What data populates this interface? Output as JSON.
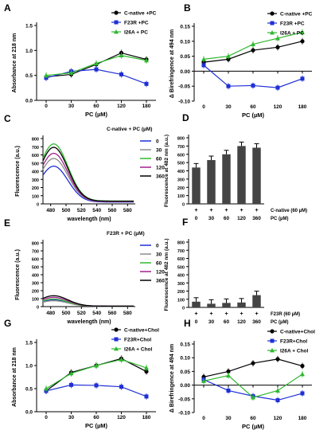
{
  "chart_data": [
    {
      "panel": "A",
      "type": "line",
      "xlabel": "PC (µM)",
      "ylabel": "Absorbance at 218 nm",
      "x": [
        0,
        30,
        60,
        120,
        180
      ],
      "xticks": [
        "0",
        "30",
        "60",
        "120",
        "180"
      ],
      "ylim": [
        0,
        1.5
      ],
      "yticks": [
        "0.0",
        "0.5",
        "1.0",
        "1.5"
      ],
      "legend": "top-right",
      "series": [
        {
          "name": "C-native +PC",
          "color": "#000000",
          "marker": "circle",
          "values": [
            0.47,
            0.52,
            0.72,
            0.95,
            0.82
          ]
        },
        {
          "name": "F23R +PC",
          "color": "#1f2fd6",
          "marker": "square",
          "values": [
            0.45,
            0.58,
            0.62,
            0.52,
            0.33
          ]
        },
        {
          "name": "I26A + PC",
          "color": "#2eb82e",
          "marker": "triangle",
          "values": [
            0.5,
            0.55,
            0.74,
            0.9,
            0.8
          ]
        }
      ]
    },
    {
      "panel": "B",
      "type": "line",
      "xlabel": "PC (µM)",
      "ylabel": "Δ Birefringence at 494 nm",
      "x": [
        0,
        30,
        60,
        120,
        180
      ],
      "xticks": [
        "0",
        "30",
        "60",
        "120",
        "180"
      ],
      "ylim": [
        -0.1,
        0.15
      ],
      "yticks": [
        "-0.10",
        "-0.05",
        "0.00",
        "0.05",
        "0.10",
        "0.15"
      ],
      "legend": "top-right",
      "series": [
        {
          "name": "C-native +PC",
          "color": "#000000",
          "marker": "circle",
          "values": [
            0.03,
            0.04,
            0.07,
            0.08,
            0.1
          ]
        },
        {
          "name": "F23R +PC",
          "color": "#1f2fd6",
          "marker": "square",
          "values": [
            0.02,
            -0.05,
            -0.048,
            -0.055,
            -0.025
          ]
        },
        {
          "name": "I26A + PC",
          "color": "#2eb82e",
          "marker": "triangle",
          "values": [
            0.04,
            0.05,
            0.09,
            0.11,
            0.13
          ]
        }
      ]
    },
    {
      "panel": "C",
      "type": "line",
      "xlabel": "wavelength (nm)",
      "ylabel": "Fluorescence (a.u.)",
      "xticks": [
        "480",
        "500",
        "520",
        "540",
        "560",
        "580"
      ],
      "ylim": [
        0,
        800
      ],
      "yticks": [
        "0",
        "100",
        "200",
        "300",
        "400",
        "500",
        "600",
        "700",
        "800"
      ],
      "legend_title": "C-native + PC (µM)",
      "legend": "top-right",
      "series": [
        {
          "name": "0",
          "color": "#1f2fd6",
          "peak": 440
        },
        {
          "name": "30",
          "color": "#8c8c8c",
          "peak": 530
        },
        {
          "name": "60",
          "color": "#2eb82e",
          "peak": 700
        },
        {
          "name": "120",
          "color": "#a0208c",
          "peak": 590
        },
        {
          "name": "360",
          "color": "#000000",
          "peak": 660
        }
      ]
    },
    {
      "panel": "D",
      "type": "bar",
      "ylabel": "Fluorescence at 482 nm (a.u.)",
      "categories": [
        "0",
        "30",
        "60",
        "120",
        "360"
      ],
      "values": [
        440,
        530,
        600,
        700,
        680
      ],
      "ylim": [
        0,
        800
      ],
      "yticks": [
        "0",
        "100",
        "200",
        "300",
        "400",
        "500",
        "600",
        "700",
        "800"
      ],
      "plus_row": [
        "+",
        "+",
        "+",
        "+",
        "+"
      ],
      "row_label_1": "C-native (60 µM)",
      "row_label_2": "PC (µM)"
    },
    {
      "panel": "E",
      "type": "line",
      "xlabel": "wavelength (nm)",
      "ylabel": "Fluorescence (a.u.)",
      "xticks": [
        "480",
        "500",
        "520",
        "540",
        "560",
        "580"
      ],
      "ylim": [
        0,
        800
      ],
      "yticks": [
        "0",
        "100",
        "200",
        "300",
        "400",
        "500",
        "600",
        "700",
        "800"
      ],
      "legend_title": "F23R + PC (µM)",
      "legend": "top-right",
      "series": [
        {
          "name": "0",
          "color": "#1f2fd6",
          "peak": 80
        },
        {
          "name": "30",
          "color": "#8c8c8c",
          "peak": 70
        },
        {
          "name": "60",
          "color": "#2eb82e",
          "peak": 90
        },
        {
          "name": "120",
          "color": "#a0208c",
          "peak": 110
        },
        {
          "name": "360",
          "color": "#000000",
          "peak": 130
        }
      ]
    },
    {
      "panel": "F",
      "type": "bar",
      "ylabel": "Fluorescence at 482 nm (a.u.)",
      "categories": [
        "0",
        "30",
        "60",
        "120",
        "360"
      ],
      "values": [
        70,
        45,
        55,
        60,
        150
      ],
      "ylim": [
        0,
        800
      ],
      "yticks": [
        "0",
        "100",
        "200",
        "300",
        "400",
        "500",
        "600",
        "700",
        "800"
      ],
      "plus_row": [
        "+",
        "+",
        "+",
        "+",
        "+"
      ],
      "row_label_1": "F23R (60 µM)",
      "row_label_2": "PC (µM)"
    },
    {
      "panel": "G",
      "type": "line",
      "xlabel": "PC (µM)",
      "ylabel": "Absorbance at 218 nm",
      "x": [
        0,
        30,
        60,
        120,
        180
      ],
      "xticks": [
        "0",
        "30",
        "60",
        "120",
        "180"
      ],
      "ylim": [
        0,
        1.5
      ],
      "yticks": [
        "0.0",
        "0.5",
        "1.0",
        "1.5"
      ],
      "legend": "top-right",
      "series": [
        {
          "name": "C-native+Chol",
          "color": "#000000",
          "marker": "circle",
          "values": [
            0.45,
            0.85,
            1.0,
            1.15,
            0.87
          ]
        },
        {
          "name": "F23R+Chol",
          "color": "#1f2fd6",
          "marker": "square",
          "values": [
            0.45,
            0.58,
            0.57,
            0.54,
            0.33
          ]
        },
        {
          "name": "I26A + Chol",
          "color": "#2eb82e",
          "marker": "triangle",
          "values": [
            0.5,
            0.83,
            1.0,
            1.13,
            0.95
          ]
        }
      ]
    },
    {
      "panel": "H",
      "type": "line",
      "xlabel": "PC (µM)",
      "ylabel": "Δ Birefringence at 494 nm",
      "x": [
        0,
        30,
        60,
        120,
        180
      ],
      "xticks": [
        "0",
        "30",
        "60",
        "120",
        "180"
      ],
      "ylim": [
        -0.1,
        0.15
      ],
      "yticks": [
        "-0.10",
        "-0.05",
        "0.00",
        "0.05",
        "0.10",
        "0.15"
      ],
      "legend": "top-right",
      "series": [
        {
          "name": "C-native+Chol",
          "color": "#000000",
          "marker": "circle",
          "values": [
            0.03,
            0.05,
            0.08,
            0.095,
            0.07
          ]
        },
        {
          "name": "F23R+Chol",
          "color": "#1f2fd6",
          "marker": "square",
          "values": [
            0.02,
            -0.02,
            -0.04,
            -0.055,
            -0.03
          ]
        },
        {
          "name": "I26A + Chol",
          "color": "#2eb82e",
          "marker": "triangle",
          "values": [
            0.015,
            0.035,
            -0.045,
            -0.02,
            0.04
          ]
        }
      ]
    }
  ]
}
